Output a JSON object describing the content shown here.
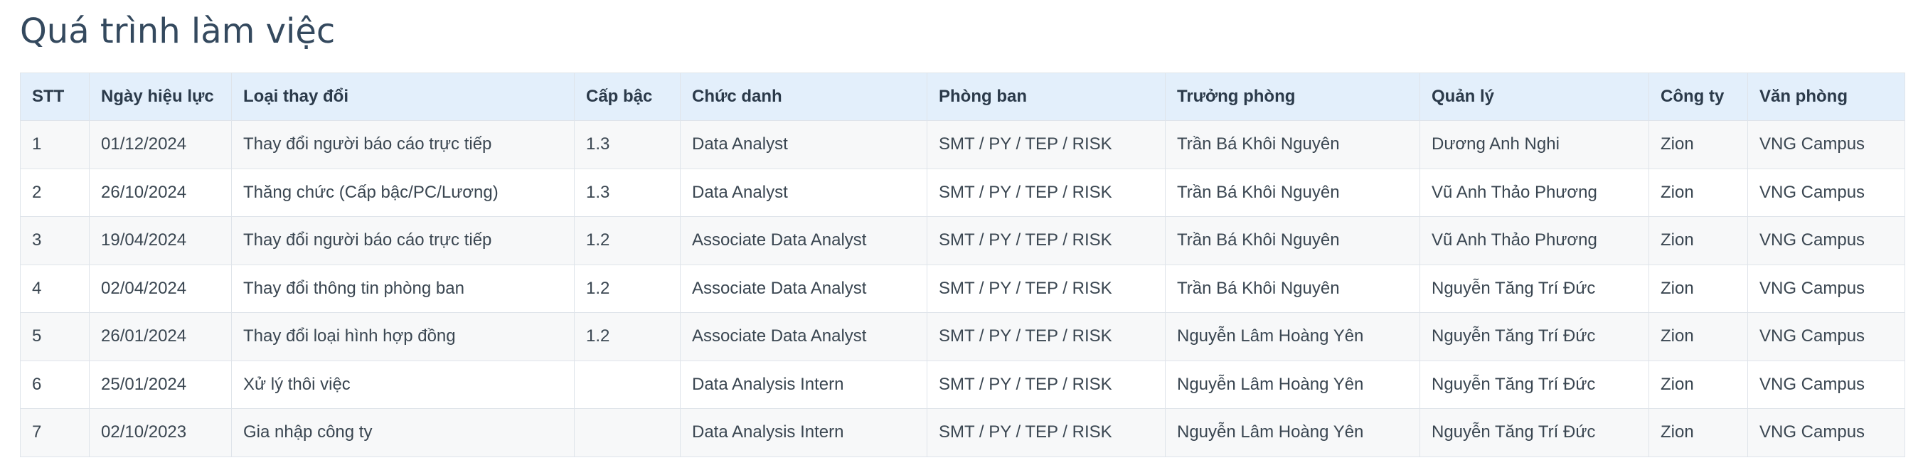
{
  "page": {
    "title": "Quá trình làm việc"
  },
  "table": {
    "headers": {
      "stt": "STT",
      "effective_date": "Ngày hiệu lực",
      "change_type": "Loại thay đổi",
      "level": "Cấp bậc",
      "position": "Chức danh",
      "department": "Phòng ban",
      "head_of_department": "Trưởng phòng",
      "manager": "Quản lý",
      "company": "Công ty",
      "office": "Văn phòng"
    },
    "rows": [
      {
        "stt": "1",
        "effective_date": "01/12/2024",
        "change_type": "Thay đổi người báo cáo trực tiếp",
        "level": "1.3",
        "position": "Data Analyst",
        "department": "SMT / PY / TEP / RISK",
        "head_of_department": "Trần Bá Khôi Nguyên",
        "manager": "Dương Anh Nghi",
        "company": "Zion",
        "office": "VNG Campus"
      },
      {
        "stt": "2",
        "effective_date": "26/10/2024",
        "change_type": "Thăng chức (Cấp bậc/PC/Lương)",
        "level": "1.3",
        "position": "Data Analyst",
        "department": "SMT / PY / TEP / RISK",
        "head_of_department": "Trần Bá Khôi Nguyên",
        "manager": "Vũ Anh Thảo Phương",
        "company": "Zion",
        "office": "VNG Campus"
      },
      {
        "stt": "3",
        "effective_date": "19/04/2024",
        "change_type": "Thay đổi người báo cáo trực tiếp",
        "level": "1.2",
        "position": "Associate Data Analyst",
        "department": "SMT / PY / TEP / RISK",
        "head_of_department": "Trần Bá Khôi Nguyên",
        "manager": "Vũ Anh Thảo Phương",
        "company": "Zion",
        "office": "VNG Campus"
      },
      {
        "stt": "4",
        "effective_date": "02/04/2024",
        "change_type": "Thay đổi thông tin phòng ban",
        "level": "1.2",
        "position": "Associate Data Analyst",
        "department": "SMT / PY / TEP / RISK",
        "head_of_department": "Trần Bá Khôi Nguyên",
        "manager": "Nguyễn Tăng Trí Đức",
        "company": "Zion",
        "office": "VNG Campus"
      },
      {
        "stt": "5",
        "effective_date": "26/01/2024",
        "change_type": "Thay đổi loại hình hợp đồng",
        "level": "1.2",
        "position": "Associate Data Analyst",
        "department": "SMT / PY / TEP / RISK",
        "head_of_department": "Nguyễn Lâm Hoàng Yên",
        "manager": "Nguyễn Tăng Trí Đức",
        "company": "Zion",
        "office": "VNG Campus"
      },
      {
        "stt": "6",
        "effective_date": "25/01/2024",
        "change_type": "Xử lý thôi việc",
        "level": "",
        "position": "Data Analysis Intern",
        "department": "SMT / PY / TEP / RISK",
        "head_of_department": "Nguyễn Lâm Hoàng Yên",
        "manager": "Nguyễn Tăng Trí Đức",
        "company": "Zion",
        "office": "VNG Campus"
      },
      {
        "stt": "7",
        "effective_date": "02/10/2023",
        "change_type": "Gia nhập công ty",
        "level": "",
        "position": "Data Analysis Intern",
        "department": "SMT / PY / TEP / RISK",
        "head_of_department": "Nguyễn Lâm Hoàng Yên",
        "manager": "Nguyễn Tăng Trí Đức",
        "company": "Zion",
        "office": "VNG Campus"
      }
    ]
  },
  "colors": {
    "title_text": "#34495e",
    "header_background": "#e3effb",
    "row_background_odd": "#f7f8f9",
    "row_background_even": "#ffffff",
    "border": "#dfe4ea"
  }
}
